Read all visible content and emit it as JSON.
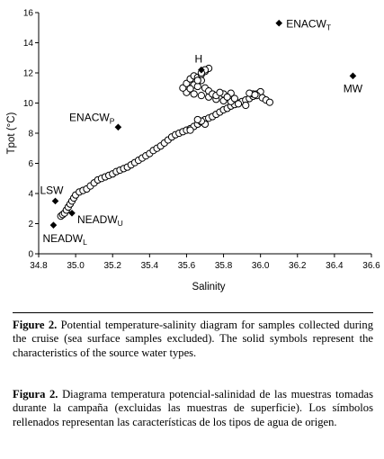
{
  "chart_data": {
    "type": "scatter",
    "xlabel": "Salinity",
    "ylabel": "Tpot (°C)",
    "xlim": [
      34.8,
      36.6
    ],
    "ylim": [
      0,
      16
    ],
    "xticks": [
      "34.8",
      "35.0",
      "35.2",
      "35.4",
      "35.6",
      "35.8",
      "36.0",
      "36.2",
      "36.4",
      "36.6"
    ],
    "yticks": [
      "0",
      "2",
      "4",
      "6",
      "8",
      "10",
      "12",
      "14",
      "16"
    ],
    "grid": false,
    "samples": {
      "marker": "open-circle",
      "points": [
        [
          34.92,
          2.5
        ],
        [
          34.93,
          2.6
        ],
        [
          34.94,
          2.7
        ],
        [
          34.95,
          2.9
        ],
        [
          34.96,
          3.1
        ],
        [
          34.97,
          3.3
        ],
        [
          34.98,
          3.5
        ],
        [
          34.99,
          3.7
        ],
        [
          35.0,
          3.9
        ],
        [
          35.02,
          4.1
        ],
        [
          35.04,
          4.2
        ],
        [
          35.06,
          4.3
        ],
        [
          35.08,
          4.5
        ],
        [
          35.1,
          4.7
        ],
        [
          35.12,
          4.9
        ],
        [
          35.14,
          5.0
        ],
        [
          35.16,
          5.1
        ],
        [
          35.18,
          5.2
        ],
        [
          35.2,
          5.3
        ],
        [
          35.22,
          5.45
        ],
        [
          35.24,
          5.55
        ],
        [
          35.26,
          5.65
        ],
        [
          35.28,
          5.75
        ],
        [
          35.3,
          5.9
        ],
        [
          35.32,
          6.05
        ],
        [
          35.34,
          6.2
        ],
        [
          35.36,
          6.35
        ],
        [
          35.38,
          6.5
        ],
        [
          35.4,
          6.65
        ],
        [
          35.42,
          6.85
        ],
        [
          35.44,
          7.0
        ],
        [
          35.46,
          7.15
        ],
        [
          35.48,
          7.35
        ],
        [
          35.5,
          7.55
        ],
        [
          35.52,
          7.75
        ],
        [
          35.54,
          7.9
        ],
        [
          35.56,
          8.0
        ],
        [
          35.58,
          8.1
        ],
        [
          35.6,
          8.2
        ],
        [
          35.62,
          8.3
        ],
        [
          35.64,
          8.45
        ],
        [
          35.66,
          8.6
        ],
        [
          35.68,
          8.75
        ],
        [
          35.7,
          8.9
        ],
        [
          35.72,
          9.0
        ],
        [
          35.74,
          9.1
        ],
        [
          35.76,
          9.25
        ],
        [
          35.78,
          9.4
        ],
        [
          35.8,
          9.55
        ],
        [
          35.82,
          9.65
        ],
        [
          35.84,
          9.8
        ],
        [
          35.86,
          9.9
        ],
        [
          35.88,
          10.0
        ],
        [
          35.9,
          10.1
        ],
        [
          35.92,
          10.2
        ],
        [
          35.94,
          10.3
        ],
        [
          35.96,
          10.45
        ],
        [
          35.98,
          10.6
        ],
        [
          36.0,
          10.75
        ],
        [
          35.98,
          10.5
        ],
        [
          35.96,
          10.6
        ],
        [
          35.94,
          10.65
        ],
        [
          35.97,
          10.55
        ],
        [
          36.01,
          10.35
        ],
        [
          36.03,
          10.2
        ],
        [
          36.05,
          10.05
        ],
        [
          35.92,
          9.85
        ],
        [
          35.88,
          9.95
        ],
        [
          35.84,
          10.1
        ],
        [
          35.8,
          10.15
        ],
        [
          35.76,
          10.25
        ],
        [
          35.72,
          10.4
        ],
        [
          35.68,
          10.5
        ],
        [
          35.64,
          10.6
        ],
        [
          35.6,
          10.7
        ],
        [
          35.58,
          11.0
        ],
        [
          35.6,
          11.3
        ],
        [
          35.62,
          11.6
        ],
        [
          35.64,
          11.8
        ],
        [
          35.66,
          11.7
        ],
        [
          35.68,
          11.5
        ],
        [
          35.64,
          11.2
        ],
        [
          35.62,
          10.95
        ],
        [
          35.66,
          11.1
        ],
        [
          35.68,
          11.9
        ],
        [
          35.7,
          12.1
        ],
        [
          35.72,
          12.3
        ],
        [
          35.7,
          12.2
        ],
        [
          35.68,
          12.0
        ],
        [
          35.66,
          11.5
        ],
        [
          35.7,
          11.0
        ],
        [
          35.72,
          10.8
        ],
        [
          35.74,
          10.6
        ],
        [
          35.76,
          10.5
        ],
        [
          35.8,
          10.6
        ],
        [
          35.84,
          10.65
        ],
        [
          35.78,
          10.7
        ],
        [
          35.82,
          10.4
        ],
        [
          35.86,
          10.3
        ],
        [
          35.7,
          8.6
        ],
        [
          35.68,
          8.8
        ],
        [
          35.66,
          8.9
        ],
        [
          35.62,
          8.2
        ]
      ]
    },
    "water_masses": [
      {
        "label": "ENACW",
        "sub": "T",
        "x": 36.1,
        "y": 15.3
      },
      {
        "label": "H",
        "sub": "",
        "x": 35.68,
        "y": 12.2
      },
      {
        "label": "MW",
        "sub": "",
        "x": 36.5,
        "y": 11.8
      },
      {
        "label": "ENACW",
        "sub": "P",
        "x": 35.23,
        "y": 8.4
      },
      {
        "label": "LSW",
        "sub": "",
        "x": 34.89,
        "y": 3.5
      },
      {
        "label": "NEADW",
        "sub": "U",
        "x": 34.98,
        "y": 2.7
      },
      {
        "label": "NEADW",
        "sub": "L",
        "x": 34.88,
        "y": 1.9
      }
    ]
  },
  "caption_en": {
    "fig_label": "Figure 2.",
    "text": " Potential temperature-salinity diagram for samples collected during the cruise (sea surface samples excluded). The solid symbols represent  the characteristics of the source water types."
  },
  "caption_es": {
    "fig_label": "Figura 2.",
    "text": " Diagrama temperatura potencial-salinidad de las muestras tomadas durante la campaña (excluidas las muestras de superficie). Los símbolos rellenados representan las características de los tipos de agua de origen."
  }
}
